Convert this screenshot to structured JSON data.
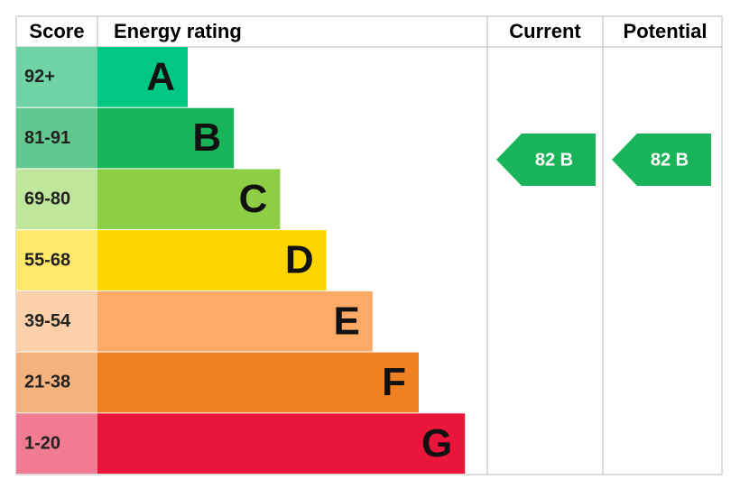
{
  "header": {
    "score": "Score",
    "rating": "Energy rating",
    "current": "Current",
    "potential": "Potential"
  },
  "bands": [
    {
      "score": "92+",
      "letter": "A",
      "color": "#00c781",
      "score_color": "#6fd3a6"
    },
    {
      "score": "81-91",
      "letter": "B",
      "color": "#19b459",
      "score_color": "#63c88f"
    },
    {
      "score": "69-80",
      "letter": "C",
      "color": "#8dce46",
      "score_color": "#bfe79b"
    },
    {
      "score": "55-68",
      "letter": "D",
      "color": "#ffd500",
      "score_color": "#ffe86b"
    },
    {
      "score": "39-54",
      "letter": "E",
      "color": "#fcaa65",
      "score_color": "#fdd0aa"
    },
    {
      "score": "21-38",
      "letter": "F",
      "color": "#ef8023",
      "score_color": "#f5b27c"
    },
    {
      "score": "1-20",
      "letter": "G",
      "color": "#e9153b",
      "score_color": "#f17b92"
    }
  ],
  "current": {
    "label": "82 B",
    "color": "#19b459"
  },
  "potential": {
    "label": "82 B",
    "color": "#19b459"
  }
}
